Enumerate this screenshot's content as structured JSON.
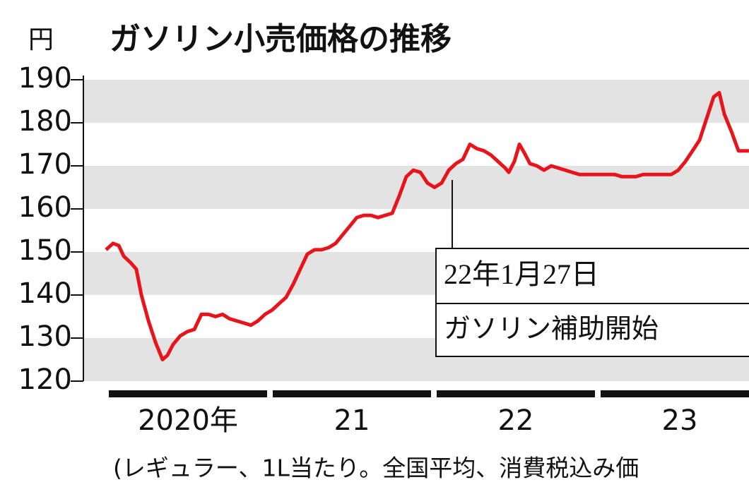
{
  "chart_data": {
    "type": "line",
    "title": "ガソリン小売価格の推移",
    "y_label": "円",
    "footnote": "(レギュラー、1L当たり。全国平均、消費税込み価",
    "annotation": {
      "date": "22年1月27日",
      "text": "ガソリン補助開始"
    },
    "color": "#e8141b",
    "bands": true,
    "ylim": [
      120,
      190
    ],
    "yticks": [
      120,
      130,
      140,
      150,
      160,
      170,
      180,
      190
    ],
    "xlim": [
      2020,
      2024
    ],
    "xticks": [
      {
        "value": 2020.5,
        "label": "2020年"
      },
      {
        "value": 2021.5,
        "label": "21"
      },
      {
        "value": 2022.5,
        "label": "22"
      },
      {
        "value": 2023.5,
        "label": "23"
      }
    ],
    "x": [
      2020.0,
      2020.043,
      2020.078,
      2020.108,
      2020.151,
      2020.185,
      2020.216,
      2020.259,
      2020.302,
      2020.345,
      2020.375,
      2020.409,
      2020.453,
      2020.496,
      2020.539,
      2020.582,
      2020.625,
      2020.668,
      2020.711,
      2020.754,
      2020.797,
      2020.841,
      2020.884,
      2020.927,
      2020.97,
      2021.013,
      2021.056,
      2021.099,
      2021.142,
      2021.185,
      2021.228,
      2021.272,
      2021.315,
      2021.358,
      2021.401,
      2021.444,
      2021.487,
      2021.53,
      2021.573,
      2021.616,
      2021.659,
      2021.703,
      2021.746,
      2021.789,
      2021.832,
      2021.875,
      2021.918,
      2021.961,
      2022.004,
      2022.047,
      2022.091,
      2022.134,
      2022.177,
      2022.22,
      2022.263,
      2022.306,
      2022.349,
      2022.392,
      2022.435,
      2022.457,
      2022.491,
      2022.522,
      2022.552,
      2022.586,
      2022.629,
      2022.672,
      2022.716,
      2022.759,
      2022.802,
      2022.845,
      2022.888,
      2022.931,
      2022.974,
      2023.017,
      2023.06,
      2023.103,
      2023.147,
      2023.19,
      2023.233,
      2023.276,
      2023.319,
      2023.362,
      2023.405,
      2023.448,
      2023.491,
      2023.534,
      2023.578,
      2023.621,
      2023.664,
      2023.707,
      2023.741,
      2023.772,
      2023.815,
      2023.858,
      2023.922
    ],
    "values": [
      150.5,
      152,
      151.5,
      149,
      147.5,
      146,
      140,
      134,
      129,
      125,
      126,
      128.5,
      130.5,
      131.5,
      132,
      135.5,
      135.5,
      135,
      135.5,
      134.5,
      134,
      133.5,
      133,
      134,
      135.5,
      136.5,
      138,
      139.5,
      142.5,
      146,
      149.5,
      150.5,
      150.5,
      151,
      152,
      154,
      156,
      158,
      158.5,
      158.5,
      158,
      158.5,
      159,
      163,
      167.5,
      169,
      168.5,
      166,
      165,
      166,
      169,
      170.5,
      171.5,
      175,
      174,
      173.5,
      172.5,
      171,
      169.5,
      168.5,
      171,
      175,
      173,
      170.5,
      170,
      169,
      170,
      169.5,
      169,
      168.5,
      168,
      168,
      168,
      168,
      168,
      168,
      167.5,
      167.5,
      167.5,
      168,
      168,
      168,
      168,
      168,
      169,
      171,
      173.5,
      176,
      181,
      186,
      187,
      182,
      178,
      173.5,
      173.5
    ]
  }
}
